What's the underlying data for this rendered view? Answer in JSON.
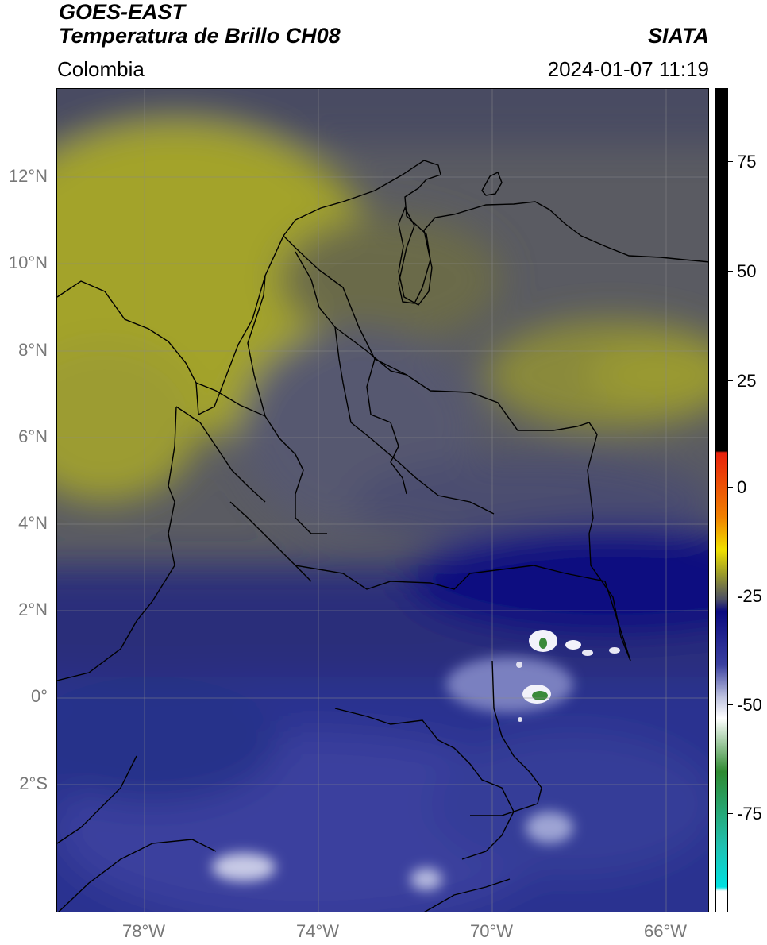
{
  "header": {
    "satellite": "GOES-EAST",
    "product": "Temperatura de Brillo CH08",
    "region": "Colombia",
    "institution": "SIATA",
    "datetime": "2024-01-07 11:19"
  },
  "map": {
    "lat_labels": [
      "12°N",
      "10°N",
      "8°N",
      "6°N",
      "4°N",
      "2°N",
      "0°",
      "2°S"
    ],
    "lon_labels": [
      "78°W",
      "74°W",
      "70°W",
      "66°W"
    ]
  },
  "colorbar": {
    "ticks": [
      "75",
      "50",
      "25",
      "0",
      "-25",
      "-50",
      "-75"
    ],
    "colors": {
      "black": "#000000",
      "red": "#e8200c",
      "orange": "#f08000",
      "yellow": "#f0e000",
      "olive": "#9a9a2a",
      "gray": "#4e5064",
      "navy": "#0a0a80",
      "blue": "#3a40a0",
      "lavender": "#c0c4e0",
      "white": "#ffffff",
      "green": "#2e8a30",
      "teal": "#20c0b0",
      "cyan": "#00e0e0"
    }
  }
}
